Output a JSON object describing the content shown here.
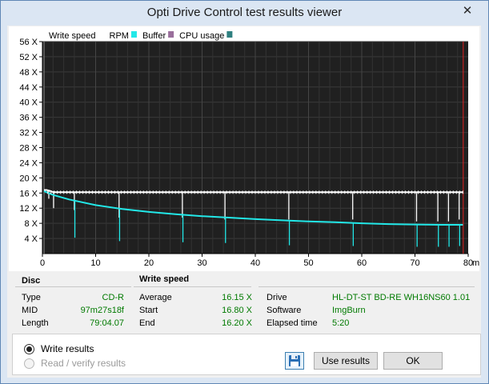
{
  "window": {
    "title": "Opti Drive Control test results viewer",
    "close_glyph": "✕"
  },
  "legend": [
    {
      "label": "Write speed",
      "swatch": "#ffffff"
    },
    {
      "label": "RPM",
      "swatch": "#22e8e8"
    },
    {
      "label": "Buffer",
      "swatch": "#9a6f9c"
    },
    {
      "label": "CPU usage",
      "swatch": "#2f8080"
    }
  ],
  "chart_data": {
    "type": "line",
    "xlabel": "min",
    "ylabel": "",
    "xlim": [
      0,
      80
    ],
    "ylim": [
      0,
      56
    ],
    "x_ticks": [
      "0",
      "10",
      "20",
      "30",
      "40",
      "50",
      "60",
      "70",
      "80"
    ],
    "y_ticks": [
      "4 X",
      "8 X",
      "12 X",
      "16 X",
      "20 X",
      "24 X",
      "28 X",
      "32 X",
      "36 X",
      "40 X",
      "44 X",
      "48 X",
      "52 X",
      "56 X"
    ],
    "grid": true,
    "background": "#202020",
    "end_marker_min": 79.07,
    "series": [
      {
        "name": "Write speed",
        "color": "#ffffff",
        "x": [
          0.3,
          0.8,
          1.6,
          1.9,
          2.4,
          5.8,
          6.2,
          14.2,
          14.6,
          26.1,
          26.5,
          34.1,
          34.5,
          46.1,
          46.5,
          58.1,
          58.5,
          70.1,
          70.5,
          74.1,
          74.5,
          76.1,
          76.5,
          78.1,
          78.5,
          79.0
        ],
        "y": [
          16.8,
          16.8,
          16.5,
          16.3,
          16.2,
          16.2,
          16.2,
          16.2,
          16.2,
          16.2,
          16.2,
          16.2,
          16.2,
          16.2,
          16.2,
          16.2,
          16.2,
          16.2,
          16.2,
          16.2,
          16.2,
          16.2,
          16.2,
          16.2,
          16.2,
          16.2
        ],
        "dips": [
          {
            "x": 1.2,
            "y": 14.5
          },
          {
            "x": 2.1,
            "y": 12.0
          },
          {
            "x": 6.0,
            "y": 11.5
          },
          {
            "x": 14.4,
            "y": 9.5
          },
          {
            "x": 26.3,
            "y": 9.5
          },
          {
            "x": 34.3,
            "y": 9.0
          },
          {
            "x": 46.3,
            "y": 9.0
          },
          {
            "x": 58.3,
            "y": 9.0
          },
          {
            "x": 70.3,
            "y": 8.5
          },
          {
            "x": 74.3,
            "y": 8.5
          },
          {
            "x": 76.3,
            "y": 8.5
          },
          {
            "x": 78.3,
            "y": 9.0
          }
        ]
      },
      {
        "name": "RPM",
        "color": "#22e8e8",
        "x": [
          0.3,
          2,
          5,
          10,
          15,
          20,
          25,
          30,
          35,
          40,
          45,
          50,
          55,
          60,
          65,
          70,
          75,
          79.0
        ],
        "y": [
          16.5,
          15.5,
          14.3,
          12.8,
          11.8,
          11.0,
          10.4,
          9.9,
          9.5,
          9.1,
          8.8,
          8.5,
          8.3,
          8.0,
          7.8,
          7.7,
          7.6,
          7.6
        ],
        "dips": [
          {
            "x": 6.1,
            "y": 4.2
          },
          {
            "x": 14.5,
            "y": 3.3
          },
          {
            "x": 26.4,
            "y": 3.0
          },
          {
            "x": 34.4,
            "y": 2.8
          },
          {
            "x": 46.4,
            "y": 2.2
          },
          {
            "x": 58.4,
            "y": 2.0
          },
          {
            "x": 70.4,
            "y": 1.8
          },
          {
            "x": 74.4,
            "y": 1.8
          },
          {
            "x": 76.4,
            "y": 1.8
          },
          {
            "x": 78.4,
            "y": 2.0
          }
        ]
      }
    ]
  },
  "disc": {
    "header": "Disc",
    "rows": [
      {
        "label": "Type",
        "value": "CD-R"
      },
      {
        "label": "MID",
        "value": "97m27s18f"
      },
      {
        "label": "Length",
        "value": "79:04.07"
      }
    ]
  },
  "write_speed": {
    "header": "Write speed",
    "rows": [
      {
        "label": "Average",
        "value": "16.15 X"
      },
      {
        "label": "Start",
        "value": "16.80 X"
      },
      {
        "label": "End",
        "value": "16.20 X"
      }
    ]
  },
  "drive_info": {
    "rows": [
      {
        "label": "Drive",
        "value": "HL-DT-ST  BD-RE  WH16NS60 1.01"
      },
      {
        "label": "Software",
        "value": "ImgBurn"
      },
      {
        "label": "Elapsed time",
        "value": "5:20"
      }
    ]
  },
  "options": {
    "write_results": "Write results",
    "read_verify_results": "Read / verify results",
    "selected": "write_results"
  },
  "buttons": {
    "use_results": "Use results",
    "ok": "OK",
    "save_icon": "floppy-disk"
  }
}
